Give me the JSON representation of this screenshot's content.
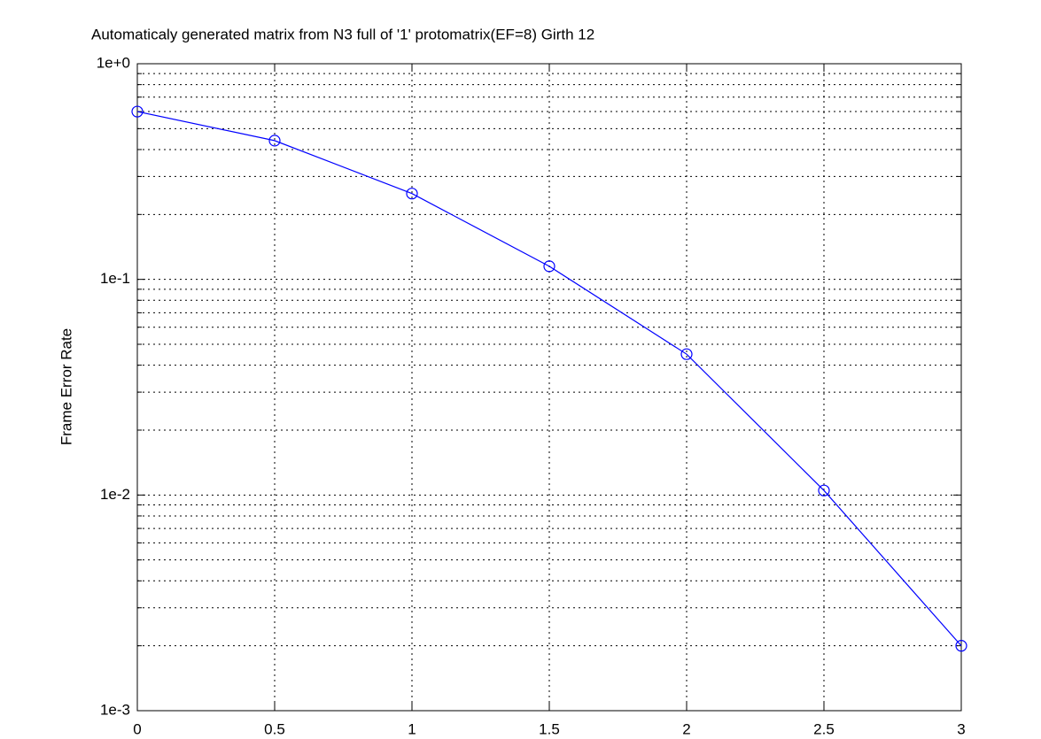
{
  "chart_data": {
    "type": "line",
    "title": "Automaticaly generated matrix from N3 full of '1' protomatrix(EF=8) Girth 12",
    "y_label": "Frame Error Rate",
    "x": [
      0,
      0.5,
      1,
      1.5,
      2,
      2.5,
      3
    ],
    "series": [
      {
        "color": "#0000ff",
        "marker": "circle",
        "values": [
          0.6,
          0.44,
          0.25,
          0.115,
          0.045,
          0.0105,
          0.002
        ]
      }
    ],
    "xlim": [
      0,
      3
    ],
    "xticks": [
      0,
      0.5,
      1,
      1.5,
      2,
      2.5,
      3
    ],
    "ylim": [
      0.001,
      1
    ],
    "y_log": true,
    "yticks": [
      {
        "value": 0.001,
        "label": "1e-3"
      },
      {
        "value": 0.01,
        "label": "1e-2"
      },
      {
        "value": 0.1,
        "label": "1e-1"
      },
      {
        "value": 1,
        "label": "1e+0"
      }
    ],
    "y_minor_ticks": [
      0.002,
      0.003,
      0.004,
      0.005,
      0.006,
      0.007,
      0.008,
      0.009,
      0.02,
      0.03,
      0.04,
      0.05,
      0.06,
      0.07,
      0.08,
      0.09,
      0.2,
      0.3,
      0.4,
      0.5,
      0.6,
      0.7,
      0.8,
      0.9
    ],
    "grid": true
  }
}
